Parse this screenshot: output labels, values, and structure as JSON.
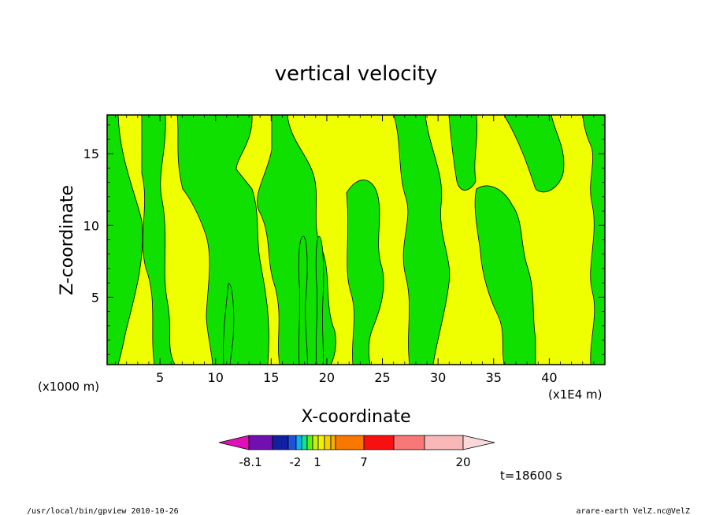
{
  "chart_data": {
    "type": "heatmap",
    "title": "vertical velocity",
    "xlabel": "X-coordinate",
    "ylabel": "Z-coordinate",
    "x_inner_ticks": [
      "5",
      "10",
      "15",
      "20",
      "25",
      "30",
      "35",
      "40"
    ],
    "x_inner_values": [
      5,
      10,
      15,
      20,
      25,
      30,
      35,
      40
    ],
    "x_inner_unit": "(x1000 m)",
    "x_outer_unit": "(x1E4 m)",
    "y_ticks": [
      "5",
      "10",
      "15"
    ],
    "y_values": [
      5,
      10,
      15
    ],
    "xlim": [
      0.25,
      45
    ],
    "ylim": [
      0.3,
      17.7
    ],
    "colorbar": {
      "tick_labels": [
        "-8.1",
        "-2",
        "1",
        "7",
        "20"
      ],
      "colors": [
        "#e010b8",
        "#7010b0",
        "#1020a0",
        "#2050e0",
        "#10b0f0",
        "#10e090",
        "#60f010",
        "#c8f000",
        "#f0f000",
        "#f8d000",
        "#f8b000",
        "#f87800",
        "#f81010",
        "#f87878",
        "#f8b8b8",
        "#f8d8d8"
      ],
      "legend_colors": {
        "green_region": "#10e000",
        "yellow_region": "#f0ff00"
      }
    },
    "time_label": "t=18600 s",
    "footer_left": "/usr/local/bin/gpview  2010-10-26",
    "footer_right": "arare-earth_VelZ.nc@VelZ"
  }
}
